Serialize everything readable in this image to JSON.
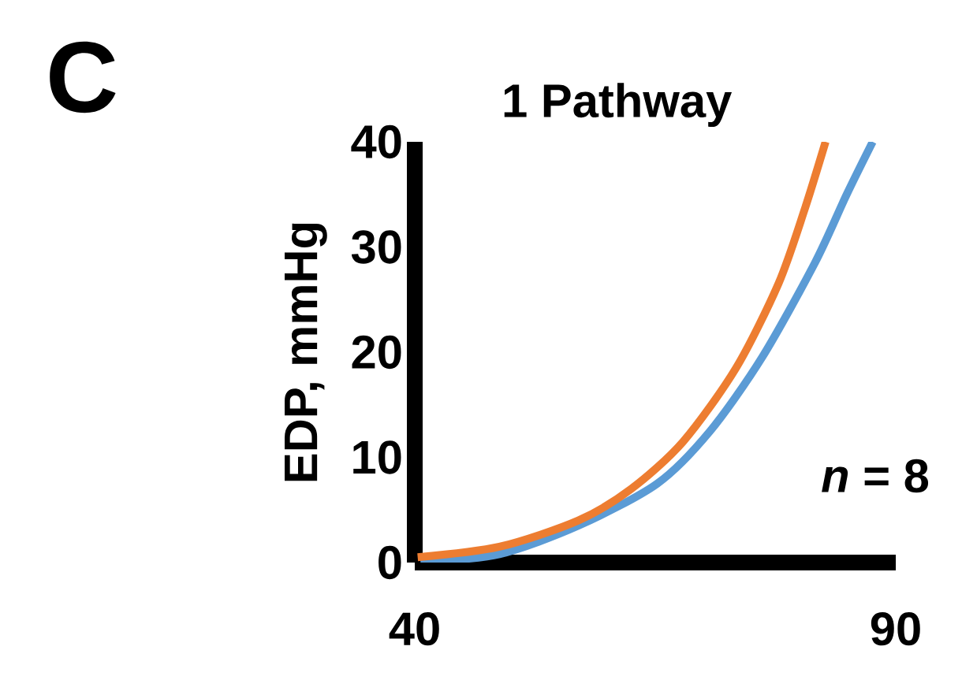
{
  "chart_data": {
    "type": "line",
    "title": "1 Pathway",
    "ylabel": "EDP, mmHg",
    "annotations": [
      "C",
      "*n* = 8"
    ],
    "xlim": [
      40,
      90
    ],
    "ylim": [
      0,
      40
    ],
    "xticks": [
      40,
      90
    ],
    "yticks": [
      0,
      10,
      20,
      30,
      40
    ],
    "series": [
      {
        "color": "#5b9bd5",
        "x": [
          40.6,
          48.8,
          57.0,
          65.2,
          70.7,
          76.1,
          81.6,
          84.9,
          87.6
        ],
        "values": [
          0,
          0.8,
          3.5,
          7.5,
          12.5,
          19.5,
          28.5,
          35,
          40
        ]
      },
      {
        "color": "#ed7d31",
        "x": [
          40.3,
          48.8,
          57.0,
          62.5,
          67.9,
          73.4,
          77.8,
          80.5,
          82.7
        ],
        "values": [
          0.5,
          1.5,
          4.0,
          7.0,
          11.5,
          18.5,
          26.5,
          33.5,
          40
        ]
      }
    ]
  }
}
